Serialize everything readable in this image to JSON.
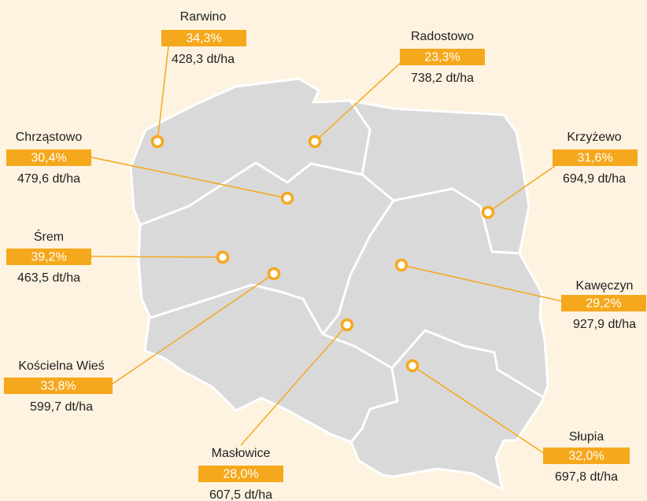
{
  "locations": [
    {
      "name": "Rarwino",
      "share": "34,3%",
      "yield": "428,3 dt/ha"
    },
    {
      "name": "Radostowo",
      "share": "23,3%",
      "yield": "738,2 dt/ha"
    },
    {
      "name": "Chrząstowo",
      "share": "30,4%",
      "yield": "479,6 dt/ha"
    },
    {
      "name": "Krzyżewo",
      "share": "31,6%",
      "yield": "694,9 dt/ha"
    },
    {
      "name": "Śrem",
      "share": "39,2%",
      "yield": "463,5 dt/ha"
    },
    {
      "name": "Kawęczyn",
      "share": "29,2%",
      "yield": "927,9 dt/ha"
    },
    {
      "name": "Kościelna Wieś",
      "share": "33,8%",
      "yield": "599,7 dt/ha"
    },
    {
      "name": "Masłowice",
      "share": "28,0%",
      "yield": "607,5 dt/ha"
    },
    {
      "name": "Słupia",
      "share": "32,0%",
      "yield": "697,8 dt/ha"
    }
  ]
}
